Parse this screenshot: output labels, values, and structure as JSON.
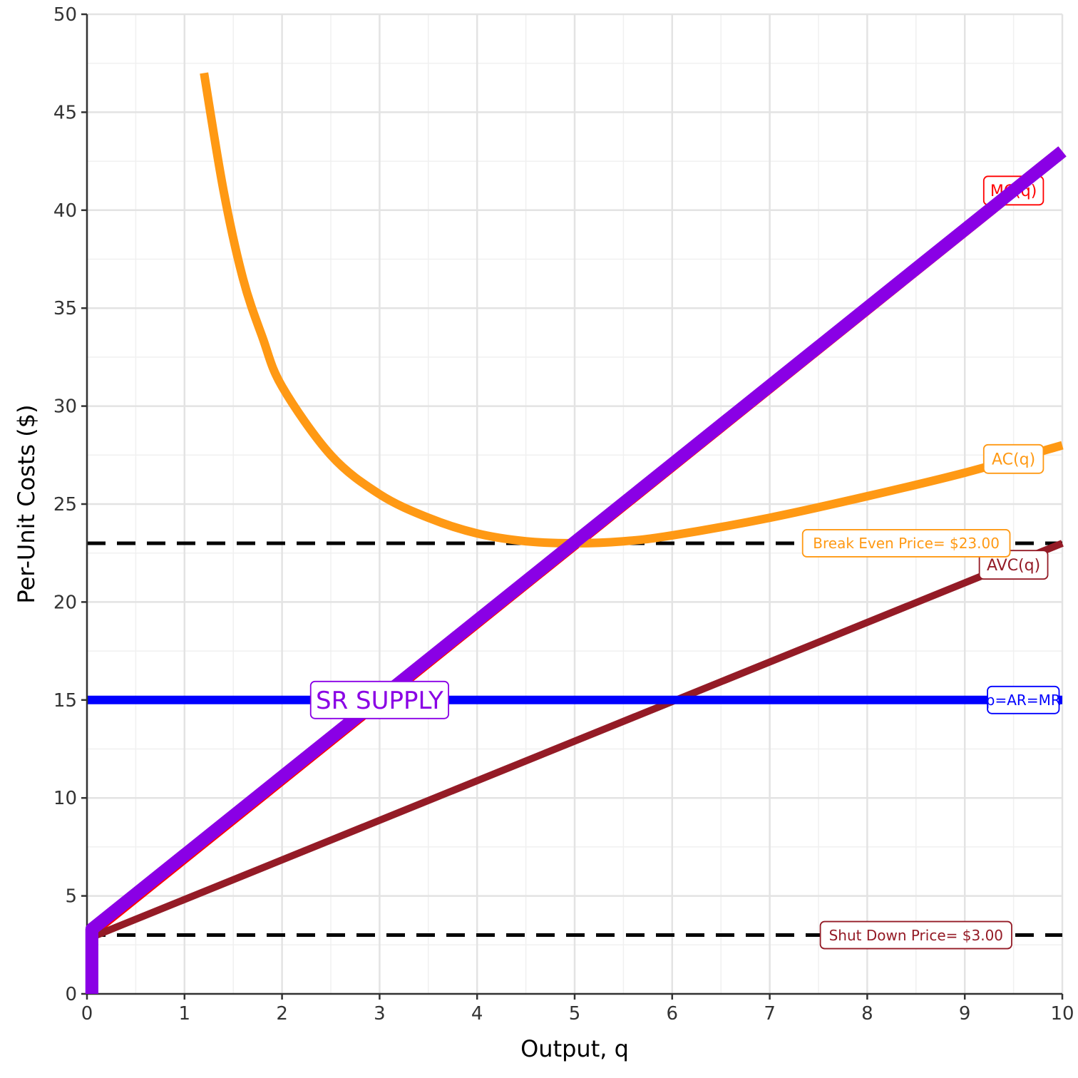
{
  "chart_data": {
    "type": "line",
    "xlabel": "Output, q",
    "ylabel": "Per-Unit Costs ($)",
    "xlim": [
      0,
      10
    ],
    "ylim": [
      0,
      50
    ],
    "x_ticks": [
      "0",
      "1",
      "2",
      "3",
      "4",
      "5",
      "6",
      "7",
      "8",
      "9",
      "10"
    ],
    "y_ticks": [
      "0",
      "5",
      "10",
      "15",
      "20",
      "25",
      "30",
      "35",
      "40",
      "45",
      "50"
    ],
    "grid": true,
    "series": [
      {
        "name": "MC(q)",
        "color": "#ff0000",
        "x": [
          0.1,
          10
        ],
        "y": [
          3.4,
          43.0
        ]
      },
      {
        "name": "AC(q)",
        "color": "#ff9914",
        "x": [
          1.2,
          1.4,
          1.6,
          1.8,
          2.0,
          2.5,
          3.0,
          3.5,
          4.0,
          4.5,
          5.0,
          5.5,
          6.0,
          7.0,
          8.0,
          9.0,
          10.0
        ],
        "y": [
          47.0,
          41.0,
          36.5,
          33.5,
          31.0,
          27.5,
          25.5,
          24.3,
          23.5,
          23.1,
          23.0,
          23.1,
          23.4,
          24.3,
          25.4,
          26.6,
          28.0
        ]
      },
      {
        "name": "AVC(q)",
        "color": "#941b26",
        "x": [
          0.1,
          10
        ],
        "y": [
          3.0,
          23.0
        ]
      },
      {
        "name": "p=AR=MR",
        "color": "#0000ff",
        "x": [
          0,
          10
        ],
        "y": [
          15,
          15
        ]
      },
      {
        "name": "SR SUPPLY",
        "color": "#8a00e5",
        "x": [
          0.05,
          0.05,
          10
        ],
        "y": [
          0,
          3.3,
          43.0
        ]
      }
    ],
    "reference_lines": [
      {
        "label": "Break Even Price= $23.00",
        "y": 23,
        "color": "#ff9914"
      },
      {
        "label": "Shut Down Price= $3.00",
        "y": 3,
        "color": "#941b26"
      }
    ]
  }
}
